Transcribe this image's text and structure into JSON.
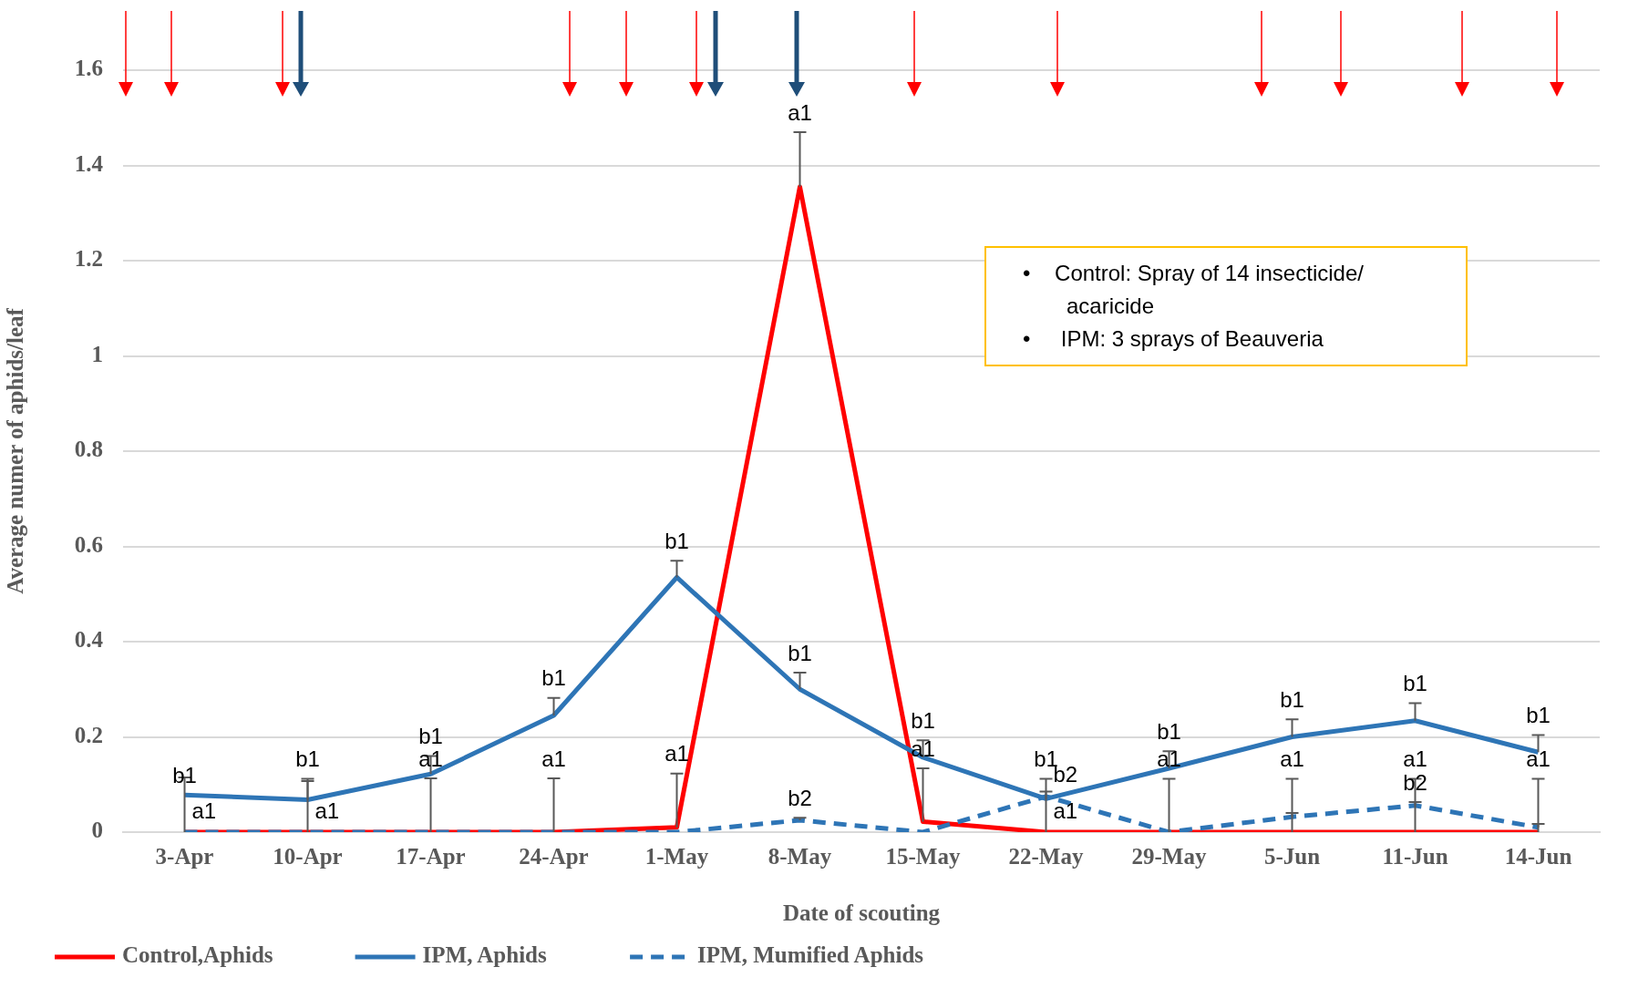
{
  "chart_data": {
    "type": "line",
    "xlabel": "Date of scouting",
    "ylabel": "Average numer of aphids/leaf",
    "categories": [
      "3-Apr",
      "10-Apr",
      "17-Apr",
      "24-Apr",
      "1-May",
      "8-May",
      "15-May",
      "22-May",
      "29-May",
      "5-Jun",
      "11-Jun",
      "14-Jun"
    ],
    "series": [
      {
        "name": "Control,Aphids",
        "color": "#ff0000",
        "values": [
          0,
          0,
          0,
          0,
          0.01,
          1.355,
          0.022,
          0,
          0,
          0,
          0,
          0
        ],
        "errors": [
          [
            0,
            0.115
          ],
          [
            0,
            0.107
          ],
          [
            0,
            0.113
          ],
          [
            0,
            0.113
          ],
          [
            0.01,
            0.123
          ],
          [
            1.355,
            1.47
          ],
          [
            0.022,
            0.134
          ],
          [
            0,
            0.085
          ],
          [
            0,
            0.112
          ],
          [
            0,
            0.112
          ],
          [
            0,
            0.112
          ],
          [
            0,
            0.112
          ]
        ]
      },
      {
        "name": "IPM, Aphids",
        "color": "#2e75b6",
        "values": [
          0.078,
          0.068,
          0.122,
          0.245,
          0.535,
          0.3,
          0.157,
          0.07,
          0.134,
          0.2,
          0.234,
          0.168
        ],
        "errors": [
          null,
          [
            0.068,
            0.112
          ],
          [
            0.122,
            0.16
          ],
          [
            0.245,
            0.282
          ],
          [
            0.535,
            0.57
          ],
          [
            0.3,
            0.335
          ],
          [
            0.157,
            0.193
          ],
          [
            0.07,
            0.112
          ],
          [
            0.134,
            0.17
          ],
          [
            0.2,
            0.237
          ],
          [
            0.234,
            0.271
          ],
          [
            0.168,
            0.204
          ]
        ]
      },
      {
        "name": "IPM, Mumified Aphids",
        "color": "#2e75b6",
        "line_style": "dashed",
        "values": [
          0,
          0,
          0,
          0,
          0,
          0.025,
          0,
          0.075,
          0,
          0.032,
          0.056,
          0.01
        ],
        "errors": [
          null,
          null,
          null,
          null,
          null,
          [
            0.025,
            0.03
          ],
          null,
          null,
          null,
          [
            0.032,
            0.04
          ],
          [
            0.056,
            0.063
          ],
          [
            0.01,
            0.017
          ]
        ]
      }
    ],
    "ylim": [
      0,
      1.6
    ],
    "yticks": [
      0,
      0.2,
      0.4,
      0.6,
      0.8,
      1,
      1.2,
      1.4,
      1.6
    ],
    "grid": "y",
    "legend": "bottom",
    "marker": "none",
    "annotations": [
      "•    Control: Spray of 14 insecticide/ acaricide",
      "•     IPM: 3 sprays of Beauveria",
      {
        "text": "b1",
        "x": "3-Apr",
        "y": 0.078
      },
      {
        "text": "a1",
        "x": "3-Apr",
        "y": 0
      },
      {
        "text": "b1",
        "x": "10-Apr",
        "y": 0.068
      },
      {
        "text": "a1",
        "x": "10-Apr",
        "y": 0
      },
      {
        "text": "b1",
        "x": "17-Apr",
        "y": 0.122
      },
      {
        "text": "a1",
        "x": "17-Apr",
        "y": 0
      },
      {
        "text": "b1",
        "x": "24-Apr",
        "y": 0.245
      },
      {
        "text": "a1",
        "x": "24-Apr",
        "y": 0
      },
      {
        "text": "b1",
        "x": "1-May",
        "y": 0.535
      },
      {
        "text": "a1",
        "x": "1-May",
        "y": 0.01
      },
      {
        "text": "a1",
        "x": "8-May",
        "y": 1.355
      },
      {
        "text": "b1",
        "x": "8-May",
        "y": 0.3
      },
      {
        "text": "b2",
        "x": "8-May",
        "y": 0.025
      },
      {
        "text": "b1",
        "x": "15-May",
        "y": 0.157
      },
      {
        "text": "a1",
        "x": "15-May",
        "y": 0.022
      },
      {
        "text": "b1",
        "x": "22-May",
        "y": 0.07
      },
      {
        "text": "b2",
        "x": "22-May",
        "y": 0.075
      },
      {
        "text": "a1",
        "x": "22-May",
        "y": 0
      },
      {
        "text": "b1",
        "x": "29-May",
        "y": 0.134
      },
      {
        "text": "a1",
        "x": "29-May",
        "y": 0
      },
      {
        "text": "b1",
        "x": "5-Jun",
        "y": 0.2
      },
      {
        "text": "a1",
        "x": "5-Jun",
        "y": 0
      },
      {
        "text": "b1",
        "x": "11-Jun",
        "y": 0.234
      },
      {
        "text": "a1",
        "x": "11-Jun",
        "y": 0
      },
      {
        "text": "b2",
        "x": "11-Jun",
        "y": 0.056
      },
      {
        "text": "b1",
        "x": "14-Jun",
        "y": 0.168
      },
      {
        "text": "a1",
        "x": "14-Jun",
        "y": 0
      }
    ]
  }
}
